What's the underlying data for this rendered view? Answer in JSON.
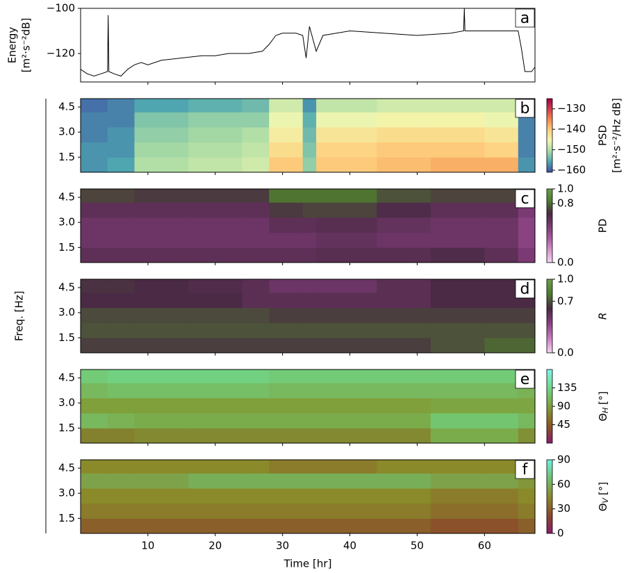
{
  "figure": {
    "ylabel": "Freq. [Hz]"
  },
  "chart_data": [
    {
      "type": "line",
      "panel_label": "a",
      "ylabel": [
        "Energy",
        "[m²·s⁻²dB]"
      ],
      "color": "#000000",
      "x": [
        0,
        1,
        2,
        3,
        4,
        4.1,
        4.2,
        5,
        6,
        7,
        8,
        9,
        10,
        12,
        15,
        18,
        20,
        22,
        25,
        27,
        28,
        29,
        30,
        32,
        33,
        33.5,
        34,
        35,
        36,
        38,
        40,
        45,
        50,
        55,
        56.9,
        57,
        57.1,
        60,
        64,
        65,
        65.5,
        66,
        67,
        67.5
      ],
      "y": [
        -127,
        -129,
        -130,
        -129,
        -128,
        -103,
        -128,
        -129,
        -130,
        -127,
        -125,
        -124,
        -125,
        -123,
        -122,
        -121,
        -121,
        -120,
        -120,
        -119,
        -116,
        -112,
        -111,
        -111,
        -112,
        -122,
        -108,
        -119,
        -112,
        -111,
        -110,
        -111,
        -112,
        -111,
        -110,
        -100,
        -110,
        -110,
        -110,
        -110,
        -118,
        -128,
        -128,
        -126
      ],
      "xlim": [
        0,
        67.5
      ],
      "xticks": [
        10,
        20,
        30,
        40,
        50,
        60
      ],
      "ylim": [
        -132.6,
        -100
      ],
      "yticks": [
        {
          "value": -100,
          "label": "−100"
        },
        {
          "value": -120,
          "label": "−120"
        }
      ]
    },
    {
      "type": "heatmap",
      "panel_label": "b",
      "colorbar_label": [
        "PSD",
        "[m²·s⁻²/Hz dB]"
      ],
      "x_edges": [
        0,
        4,
        8,
        16,
        24,
        28,
        33,
        35,
        44,
        52,
        60,
        65,
        67.5
      ],
      "y_edges": [
        0.6,
        1.5,
        2.4,
        3.3,
        4.2,
        5.0
      ],
      "values": [
        [
          -157,
          -156,
          -150,
          -149,
          -148,
          -140,
          -152,
          -140,
          -139,
          -138,
          -138,
          -157
        ],
        [
          -157,
          -157,
          -151,
          -150,
          -149,
          -142,
          -153,
          -141,
          -140,
          -140,
          -141,
          -158
        ],
        [
          -158,
          -157,
          -152,
          -151,
          -150,
          -144,
          -154,
          -143,
          -142,
          -142,
          -143,
          -158
        ],
        [
          -158,
          -158,
          -153,
          -152,
          -152,
          -146,
          -155,
          -146,
          -145,
          -145,
          -146,
          -158
        ],
        [
          -159,
          -158,
          -156,
          -155,
          -154,
          -148,
          -157,
          -149,
          -148,
          -148,
          -148,
          -159
        ]
      ],
      "xlim": [
        0,
        67.5
      ],
      "xticks": [
        10,
        20,
        30,
        40,
        50,
        60
      ],
      "ylim": [
        0.6,
        5.0
      ],
      "yticks": [
        1.5,
        {
          "value": 3,
          "label": "3.0"
        },
        4.5
      ],
      "clim": [
        -161,
        -125
      ],
      "cticks": [
        {
          "value": -160,
          "label": "−160"
        },
        {
          "value": -150,
          "label": "−150"
        },
        {
          "value": -140,
          "label": "−140"
        },
        {
          "value": -130,
          "label": "−130"
        }
      ],
      "colormap": [
        "#3f4da3",
        "#4fa8b0",
        "#a8dba4",
        "#f2f7b0",
        "#fdd07e",
        "#f58a4c",
        "#d33c4e",
        "#9e0142"
      ]
    },
    {
      "type": "heatmap",
      "panel_label": "c",
      "colorbar_label": "PD",
      "x_edges": [
        0,
        4,
        8,
        16,
        24,
        28,
        33,
        35,
        44,
        52,
        60,
        65,
        67.5
      ],
      "y_edges": [
        0.6,
        1.5,
        2.4,
        3.3,
        4.2,
        5.0
      ],
      "values": [
        [
          0.6,
          0.6,
          0.6,
          0.6,
          0.6,
          0.6,
          0.6,
          0.62,
          0.62,
          0.65,
          0.6,
          0.5
        ],
        [
          0.55,
          0.55,
          0.55,
          0.55,
          0.55,
          0.55,
          0.55,
          0.58,
          0.55,
          0.55,
          0.55,
          0.45
        ],
        [
          0.55,
          0.55,
          0.55,
          0.55,
          0.55,
          0.6,
          0.6,
          0.62,
          0.58,
          0.55,
          0.55,
          0.45
        ],
        [
          0.6,
          0.6,
          0.6,
          0.6,
          0.6,
          0.7,
          0.72,
          0.72,
          0.65,
          0.6,
          0.6,
          0.5
        ],
        [
          0.72,
          0.72,
          0.7,
          0.7,
          0.7,
          0.82,
          0.82,
          0.82,
          0.75,
          0.72,
          0.72,
          0.6
        ]
      ],
      "xlim": [
        0,
        67.5
      ],
      "xticks": [
        10,
        20,
        30,
        40,
        50,
        60
      ],
      "ylim": [
        0.6,
        5.0
      ],
      "yticks": [
        1.5,
        {
          "value": 3,
          "label": "3.0"
        },
        4.5
      ],
      "clim": [
        0,
        1
      ],
      "cticks": [
        {
          "value": 0,
          "label": "0.0"
        },
        0.8,
        {
          "value": 1,
          "label": "1.0"
        }
      ],
      "colormap": [
        "#f7d6f3",
        "#d596cc",
        "#a9589f",
        "#7b3a74",
        "#4a2a44",
        "#4f7a2f",
        "#6aa04a"
      ]
    },
    {
      "type": "heatmap",
      "panel_label": "d",
      "colorbar_label": "R",
      "x_edges": [
        0,
        4,
        8,
        16,
        24,
        28,
        33,
        35,
        44,
        52,
        60,
        65,
        67.5
      ],
      "y_edges": [
        0.6,
        1.5,
        2.4,
        3.3,
        4.2,
        5.0
      ],
      "values": [
        [
          0.65,
          0.65,
          0.65,
          0.65,
          0.65,
          0.65,
          0.65,
          0.65,
          0.65,
          0.7,
          0.75,
          0.75
        ],
        [
          0.7,
          0.7,
          0.7,
          0.7,
          0.7,
          0.7,
          0.7,
          0.7,
          0.7,
          0.7,
          0.7,
          0.7
        ],
        [
          0.68,
          0.68,
          0.68,
          0.68,
          0.68,
          0.65,
          0.65,
          0.65,
          0.65,
          0.65,
          0.65,
          0.65
        ],
        [
          0.6,
          0.6,
          0.6,
          0.6,
          0.55,
          0.55,
          0.55,
          0.55,
          0.55,
          0.6,
          0.6,
          0.6
        ],
        [
          0.62,
          0.62,
          0.6,
          0.58,
          0.55,
          0.5,
          0.5,
          0.5,
          0.55,
          0.6,
          0.6,
          0.6
        ]
      ],
      "xlim": [
        0,
        67.5
      ],
      "xticks": [
        10,
        20,
        30,
        40,
        50,
        60
      ],
      "ylim": [
        0.6,
        5.0
      ],
      "yticks": [
        1.5,
        {
          "value": 3,
          "label": "3.0"
        },
        4.5
      ],
      "clim": [
        0,
        1
      ],
      "cticks": [
        {
          "value": 0,
          "label": "0.0"
        },
        0.7,
        {
          "value": 1,
          "label": "1.0"
        }
      ],
      "colormap": [
        "#f7d6f3",
        "#c77bbf",
        "#8c3f85",
        "#4a2a44",
        "#4f7a2f",
        "#6aa04a"
      ]
    },
    {
      "type": "heatmap",
      "panel_label": "e",
      "colorbar_label": {
        "symbol": "Θ",
        "subscript": "H",
        "unit": "[°]"
      },
      "x_edges": [
        0,
        4,
        8,
        16,
        24,
        28,
        33,
        35,
        44,
        52,
        60,
        65,
        67.5
      ],
      "y_edges": [
        0.6,
        1.5,
        2.4,
        3.3,
        4.2,
        5.0
      ],
      "values": [
        [
          70,
          70,
          75,
          75,
          75,
          75,
          75,
          75,
          75,
          100,
          100,
          80
        ],
        [
          110,
          105,
          100,
          100,
          100,
          100,
          100,
          100,
          100,
          120,
          120,
          110
        ],
        [
          90,
          90,
          90,
          90,
          90,
          90,
          90,
          90,
          90,
          95,
          95,
          95
        ],
        [
          110,
          115,
          115,
          115,
          115,
          110,
          110,
          110,
          110,
          110,
          110,
          105
        ],
        [
          125,
          130,
          130,
          130,
          130,
          125,
          125,
          125,
          125,
          125,
          125,
          115
        ]
      ],
      "xlim": [
        0,
        67.5
      ],
      "xticks": [
        10,
        20,
        30,
        40,
        50,
        60
      ],
      "ylim": [
        0.6,
        5.0
      ],
      "yticks": [
        1.5,
        {
          "value": 3,
          "label": "3.0"
        },
        4.5
      ],
      "clim": [
        0,
        180
      ],
      "cticks": [
        45,
        90,
        135
      ],
      "colormap": [
        "#8b1a6a",
        "#8a5a1f",
        "#7fa03a",
        "#6fd78a",
        "#7ff5e8"
      ]
    },
    {
      "type": "heatmap",
      "panel_label": "f",
      "colorbar_label": {
        "symbol": "Θ",
        "subscript": "V",
        "unit": "[°]"
      },
      "xlabel": "Time [hr]",
      "x_edges": [
        0,
        4,
        8,
        16,
        24,
        28,
        33,
        35,
        44,
        52,
        60,
        65,
        67.5
      ],
      "y_edges": [
        0.6,
        1.5,
        2.4,
        3.3,
        4.2,
        5.0
      ],
      "values": [
        [
          30,
          30,
          30,
          30,
          30,
          30,
          30,
          30,
          30,
          25,
          25,
          30
        ],
        [
          40,
          40,
          40,
          40,
          40,
          40,
          40,
          40,
          40,
          35,
          35,
          40
        ],
        [
          45,
          45,
          45,
          45,
          45,
          45,
          45,
          45,
          45,
          40,
          40,
          45
        ],
        [
          55,
          55,
          55,
          60,
          60,
          60,
          60,
          60,
          60,
          55,
          55,
          50
        ],
        [
          45,
          45,
          45,
          45,
          45,
          40,
          40,
          40,
          45,
          45,
          45,
          45
        ]
      ],
      "xlim": [
        0,
        67.5
      ],
      "xticks": [
        10,
        20,
        30,
        40,
        50,
        60
      ],
      "ylim": [
        0.6,
        5.0
      ],
      "yticks": [
        1.5,
        {
          "value": 3,
          "label": "3.0"
        },
        4.5
      ],
      "clim": [
        0,
        90
      ],
      "cticks": [
        0,
        30,
        60,
        90
      ],
      "colormap": [
        "#8b1a6a",
        "#8a4a2a",
        "#8a8a2a",
        "#70c070",
        "#70f0e0"
      ]
    }
  ]
}
